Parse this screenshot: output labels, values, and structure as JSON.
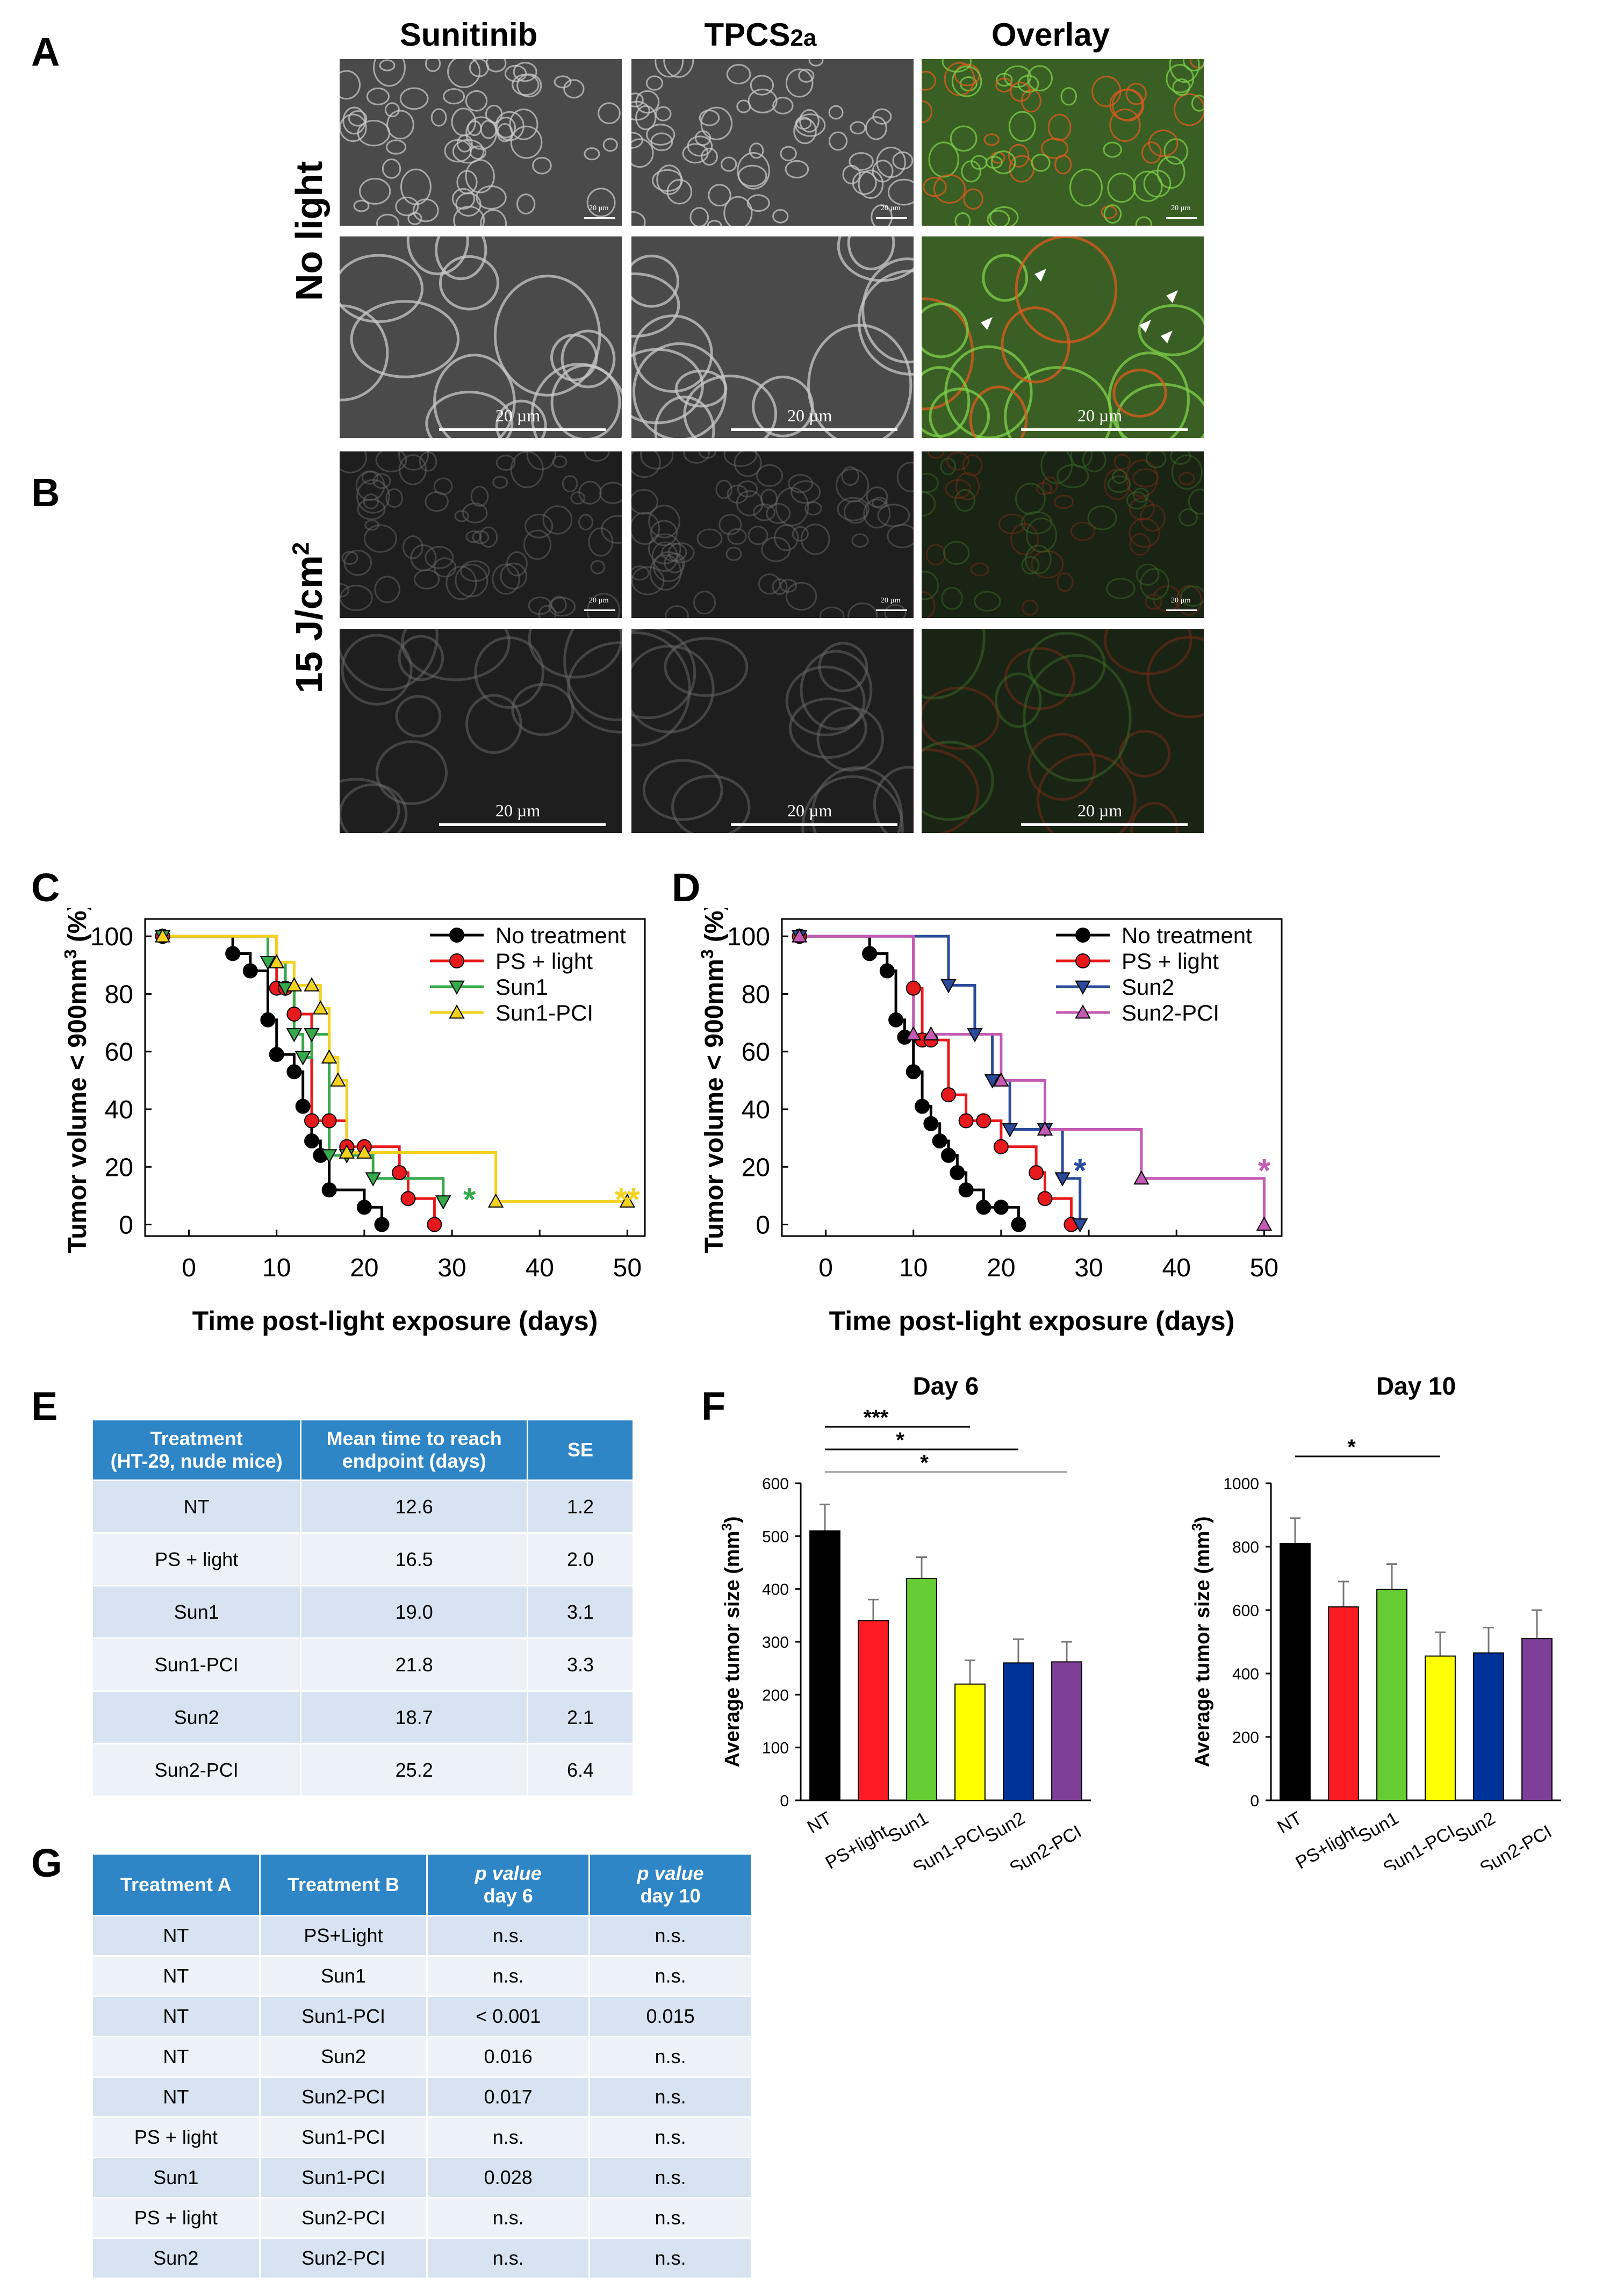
{
  "panel_labels": {
    "a": "A",
    "b": "B",
    "c": "C",
    "d": "D",
    "e": "E",
    "f": "F",
    "g": "G"
  },
  "micro": {
    "col_sunitinib": "Sunitinib",
    "col_tpcs_main": "TPCS",
    "col_tpcs_sub": "2a",
    "col_overlay": "Overlay",
    "row_no_light": "No light",
    "row_light": "15 J/cm",
    "row_light_sup": "2",
    "scale_label": "20 µm"
  },
  "colors": {
    "no_treatment": "#000000",
    "ps_light": "#e8191c",
    "sun1": "#36a94a",
    "sun1_pci": "#f2d21e",
    "sun2": "#2a4b9b",
    "sun2_pci": "#c45ab3",
    "table_header": "#2e86c7",
    "bar_nt": "#000000",
    "bar_ps": "#fe1c24",
    "bar_sun1": "#66cc33",
    "bar_sun1pci": "#ffff00",
    "bar_sun2": "#003399",
    "bar_sun2pci": "#7f3f98"
  },
  "chart_data": [
    {
      "id": "C",
      "type": "line",
      "title": "",
      "xlabel": "Time post-light exposure (days)",
      "ylabel": "Tumor volume < 900mm",
      "ylabel_sup": "3",
      "ylabel_unit": " (%)",
      "xlim": [
        -5,
        52
      ],
      "ylim": [
        -4,
        106
      ],
      "xticks": [
        0,
        10,
        20,
        30,
        40,
        50
      ],
      "yticks": [
        0,
        20,
        40,
        60,
        80,
        100
      ],
      "annotations": [
        {
          "text": "*",
          "x": 32,
          "y": 9,
          "series": "Sun1"
        },
        {
          "text": "**",
          "x": 50,
          "y": 9,
          "series": "Sun1-PCI"
        }
      ],
      "series": [
        {
          "name": "No treatment",
          "color": "#000000",
          "marker": "circle",
          "x": [
            -3,
            5,
            7,
            9,
            10,
            12,
            13,
            14,
            15,
            16,
            20,
            22
          ],
          "y": [
            100,
            94,
            88,
            71,
            59,
            53,
            41,
            29,
            24,
            12,
            6,
            0
          ]
        },
        {
          "name": "PS + light",
          "color": "#e8191c",
          "marker": "circle",
          "x": [
            -3,
            10,
            11,
            12,
            14,
            16,
            18,
            20,
            24,
            25,
            28
          ],
          "y": [
            100,
            82,
            82,
            73,
            36,
            36,
            27,
            27,
            18,
            9,
            0
          ]
        },
        {
          "name": "Sun1",
          "color": "#36a94a",
          "marker": "triangle-down",
          "x": [
            -3,
            9,
            11,
            12,
            13,
            14,
            16,
            18,
            21,
            29
          ],
          "y": [
            100,
            91,
            82,
            66,
            58,
            66,
            24,
            24,
            16,
            8
          ]
        },
        {
          "name": "Sun1-PCI",
          "color": "#f2d21e",
          "marker": "triangle-up",
          "x": [
            -3,
            10,
            12,
            14,
            15,
            16,
            17,
            18,
            20,
            35,
            50
          ],
          "y": [
            100,
            91,
            83,
            83,
            75,
            58,
            50,
            25,
            25,
            8,
            8
          ]
        }
      ]
    },
    {
      "id": "D",
      "type": "line",
      "title": "",
      "xlabel": "Time post-light exposure (days)",
      "ylabel": "Tumor volume < 900mm",
      "ylabel_sup": "3",
      "ylabel_unit": " (%)",
      "xlim": [
        -5,
        52
      ],
      "ylim": [
        -4,
        106
      ],
      "xticks": [
        0,
        10,
        20,
        30,
        40,
        50
      ],
      "yticks": [
        0,
        20,
        40,
        60,
        80,
        100
      ],
      "annotations": [
        {
          "text": "*",
          "x": 29,
          "y": 19,
          "series": "Sun2"
        },
        {
          "text": "*",
          "x": 50,
          "y": 19,
          "series": "Sun2-PCI"
        }
      ],
      "series": [
        {
          "name": "No treatment",
          "color": "#000000",
          "marker": "circle",
          "x": [
            -3,
            5,
            7,
            8,
            9,
            10,
            11,
            12,
            13,
            14,
            15,
            16,
            18,
            20,
            22
          ],
          "y": [
            100,
            94,
            88,
            71,
            65,
            53,
            41,
            35,
            29,
            24,
            18,
            12,
            6,
            6,
            0
          ]
        },
        {
          "name": "PS + light",
          "color": "#e8191c",
          "marker": "circle",
          "x": [
            -3,
            10,
            11,
            12,
            14,
            16,
            18,
            20,
            24,
            25,
            28
          ],
          "y": [
            100,
            82,
            64,
            64,
            45,
            36,
            36,
            27,
            18,
            9,
            0
          ]
        },
        {
          "name": "Sun2",
          "color": "#2a4b9b",
          "marker": "triangle-down",
          "x": [
            -3,
            14,
            17,
            19,
            21,
            25,
            27,
            29
          ],
          "y": [
            100,
            83,
            66,
            50,
            33,
            33,
            16,
            0
          ]
        },
        {
          "name": "Sun2-PCI",
          "color": "#c45ab3",
          "marker": "triangle-up",
          "x": [
            -3,
            10,
            12,
            20,
            25,
            36,
            50
          ],
          "y": [
            100,
            66,
            66,
            50,
            33,
            16,
            0
          ]
        }
      ]
    },
    {
      "id": "F1",
      "type": "bar",
      "title": "Day 6",
      "ylabel": "Average tumor size (mm",
      "ylabel_sup": "3",
      "ylabel_close": ")",
      "ylim": [
        0,
        600
      ],
      "yticks": [
        0,
        100,
        200,
        300,
        400,
        500,
        600
      ],
      "categories": [
        "NT",
        "PS+light",
        "Sun1",
        "Sun1-PCI",
        "Sun2",
        "Sun2-PCI"
      ],
      "values": [
        510,
        340,
        420,
        220,
        260,
        262
      ],
      "errors": [
        50,
        40,
        40,
        45,
        45,
        38
      ],
      "significance": [
        {
          "label": "***",
          "from": "NT",
          "to": "Sun1-PCI"
        },
        {
          "label": "*",
          "from": "NT",
          "to": "Sun2"
        },
        {
          "label": "*",
          "from": "NT",
          "to": "Sun2-PCI"
        }
      ]
    },
    {
      "id": "F2",
      "type": "bar",
      "title": "Day 10",
      "ylabel": "Average tumor size (mm",
      "ylabel_sup": "3",
      "ylabel_close": ")",
      "ylim": [
        0,
        1000
      ],
      "yticks": [
        0,
        200,
        400,
        600,
        800,
        1000
      ],
      "categories": [
        "NT",
        "PS+light",
        "Sun1",
        "Sun1-PCI",
        "Sun2",
        "Sun2-PCI"
      ],
      "values": [
        810,
        610,
        665,
        455,
        465,
        510
      ],
      "errors": [
        80,
        80,
        80,
        75,
        80,
        90
      ],
      "significance": [
        {
          "label": "*",
          "from": "NT",
          "to": "Sun1-PCI"
        }
      ]
    }
  ],
  "table_e": {
    "headers": [
      "Treatment\n(HT-29, nude mice)",
      "Mean time to reach\nendpoint (days)",
      "SE"
    ],
    "rows": [
      [
        "NT",
        "12.6",
        "1.2"
      ],
      [
        "PS + light",
        "16.5",
        "2.0"
      ],
      [
        "Sun1",
        "19.0",
        "3.1"
      ],
      [
        "Sun1-PCI",
        "21.8",
        "3.3"
      ],
      [
        "Sun2",
        "18.7",
        "2.1"
      ],
      [
        "Sun2-PCI",
        "25.2",
        "6.4"
      ]
    ]
  },
  "table_g": {
    "headers": [
      {
        "main": "Treatment A",
        "sub": ""
      },
      {
        "main": "Treatment  B",
        "sub": ""
      },
      {
        "main": "p value",
        "sub": "day 6"
      },
      {
        "main": "p value",
        "sub": "day 10"
      }
    ],
    "rows": [
      [
        "NT",
        "PS+Light",
        "n.s.",
        "n.s."
      ],
      [
        "NT",
        "Sun1",
        "n.s.",
        "n.s."
      ],
      [
        "NT",
        "Sun1-PCI",
        "< 0.001",
        "0.015"
      ],
      [
        "NT",
        "Sun2",
        "0.016",
        "n.s."
      ],
      [
        "NT",
        "Sun2-PCI",
        "0.017",
        "n.s."
      ],
      [
        "PS + light",
        "Sun1-PCI",
        "n.s.",
        "n.s."
      ],
      [
        "Sun1",
        "Sun1-PCI",
        "0.028",
        "n.s."
      ],
      [
        "PS + light",
        "Sun2-PCI",
        "n.s.",
        "n.s."
      ],
      [
        "Sun2",
        "Sun2-PCI",
        "n.s.",
        "n.s."
      ]
    ]
  }
}
